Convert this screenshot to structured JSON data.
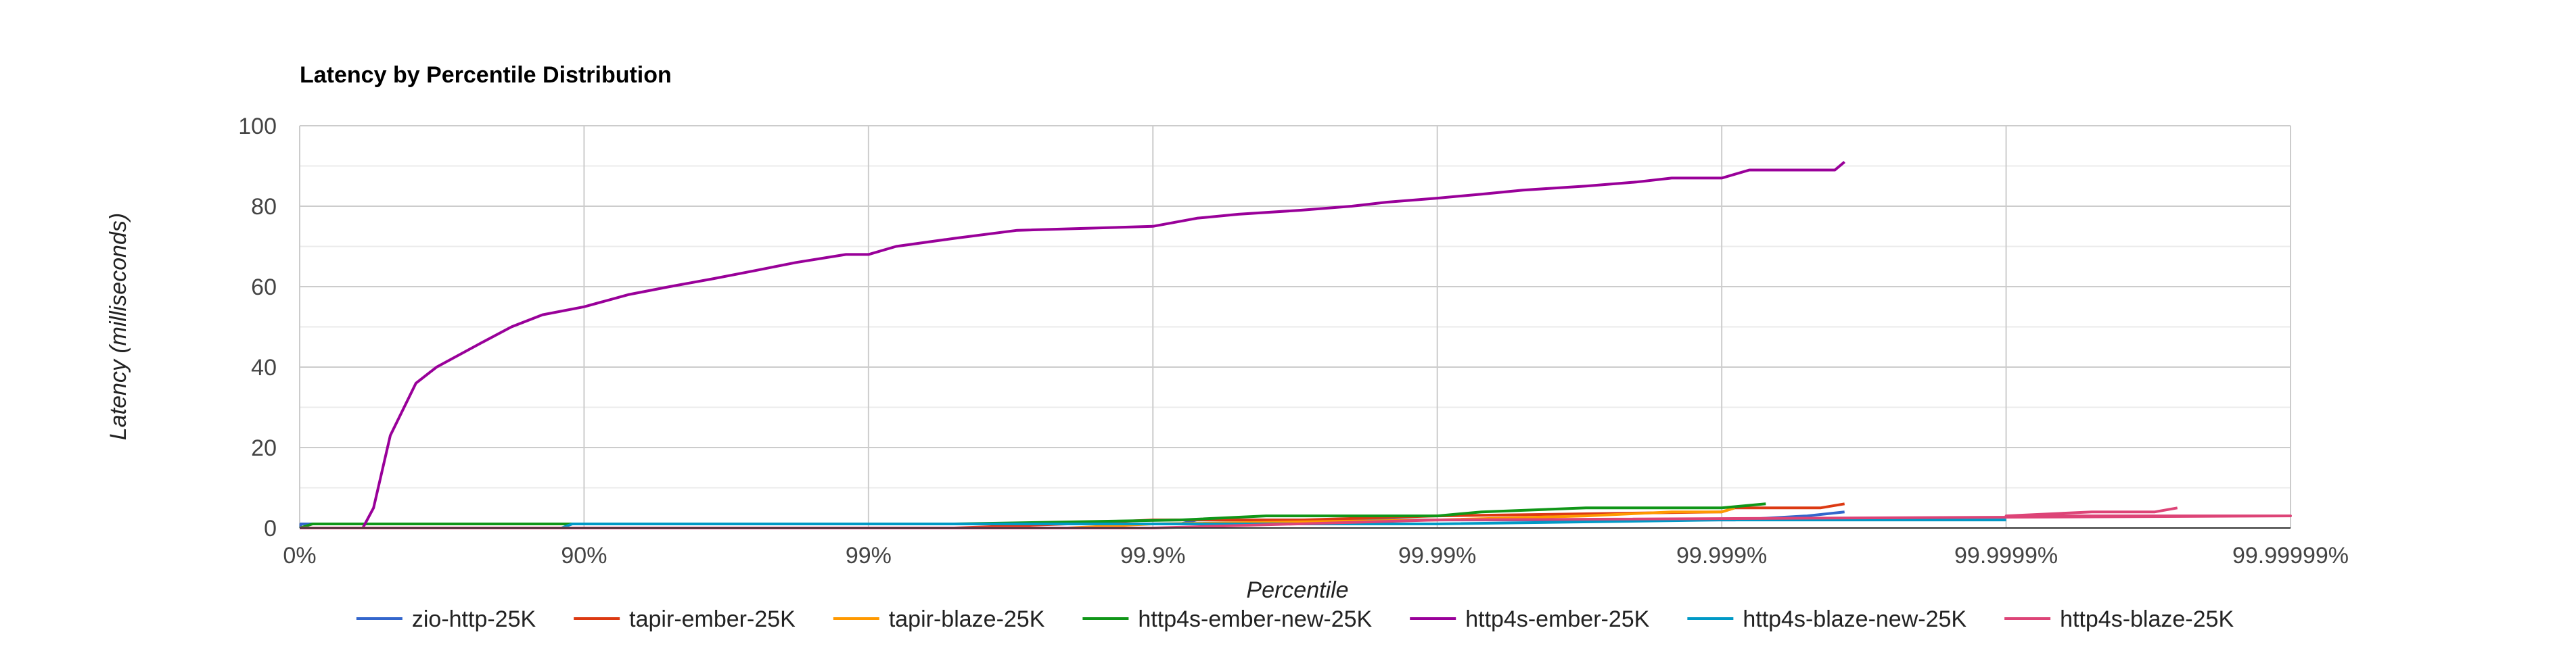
{
  "chart_data": {
    "type": "line",
    "title": "Latency by Percentile Distribution",
    "xlabel": "Percentile",
    "ylabel": "Latency (milliseconds)",
    "x_scale": "log-percentile",
    "x_ticks": [
      "0%",
      "90%",
      "99%",
      "99.9%",
      "99.99%",
      "99.999%",
      "99.9999%",
      "99.99999%"
    ],
    "y_ticks": [
      "0",
      "20",
      "40",
      "60",
      "80",
      "100"
    ],
    "ylim": [
      0,
      100
    ],
    "grid": true,
    "legend_position": "bottom",
    "series": [
      {
        "name": "zio-http-25K",
        "color": "#3366cc",
        "points": [
          [
            0,
            0
          ],
          [
            0.88,
            0
          ],
          [
            0.9,
            1
          ],
          [
            99.5,
            1
          ],
          [
            99.92,
            1
          ],
          [
            99.93,
            2
          ],
          [
            99.999,
            2
          ],
          [
            99.9991,
            2
          ],
          [
            99.9995,
            3
          ],
          [
            99.99963,
            4
          ]
        ]
      },
      {
        "name": "tapir-ember-25K",
        "color": "#dc3912",
        "points": [
          [
            0,
            0
          ],
          [
            99.5,
            0
          ],
          [
            99.8,
            1
          ],
          [
            99.9,
            2
          ],
          [
            99.97,
            2
          ],
          [
            99.99,
            3
          ],
          [
            99.999,
            4
          ],
          [
            99.9991,
            5
          ],
          [
            99.99955,
            5
          ],
          [
            99.99963,
            6
          ]
        ]
      },
      {
        "name": "tapir-blaze-25K",
        "color": "#ff9900",
        "points": [
          [
            0,
            0
          ],
          [
            99.8,
            0
          ],
          [
            99.9,
            1
          ],
          [
            99.99,
            2
          ],
          [
            99.997,
            3
          ],
          [
            99.9985,
            4
          ],
          [
            99.999,
            4
          ],
          [
            99.9991,
            5
          ]
        ]
      },
      {
        "name": "http4s-ember-new-25K",
        "color": "#109618",
        "points": [
          [
            0,
            0
          ],
          [
            10,
            1
          ],
          [
            99.5,
            1
          ],
          [
            99.92,
            2
          ],
          [
            99.96,
            3
          ],
          [
            99.99,
            3
          ],
          [
            99.993,
            4
          ],
          [
            99.997,
            5
          ],
          [
            99.999,
            5
          ],
          [
            99.9993,
            6
          ]
        ]
      },
      {
        "name": "http4s-ember-25K",
        "color": "#990099",
        "points": [
          [
            0,
            0
          ],
          [
            40,
            0
          ],
          [
            45,
            5
          ],
          [
            52,
            23
          ],
          [
            61,
            36
          ],
          [
            67,
            40
          ],
          [
            77,
            46
          ],
          [
            82,
            50
          ],
          [
            86,
            53
          ],
          [
            90,
            55
          ],
          [
            93,
            58
          ],
          [
            95,
            60
          ],
          [
            96.5,
            62
          ],
          [
            97.5,
            64
          ],
          [
            98.2,
            66
          ],
          [
            98.8,
            68
          ],
          [
            99,
            68
          ],
          [
            99.2,
            70
          ],
          [
            99.5,
            72
          ],
          [
            99.7,
            74
          ],
          [
            99.9,
            75
          ],
          [
            99.93,
            77
          ],
          [
            99.95,
            78
          ],
          [
            99.97,
            79
          ],
          [
            99.98,
            80
          ],
          [
            99.985,
            81
          ],
          [
            99.99,
            82
          ],
          [
            99.993,
            83
          ],
          [
            99.995,
            84
          ],
          [
            99.997,
            85
          ],
          [
            99.998,
            86
          ],
          [
            99.9985,
            87
          ],
          [
            99.999,
            87
          ],
          [
            99.9992,
            89
          ],
          [
            99.9996,
            89
          ],
          [
            99.99963,
            91
          ]
        ]
      },
      {
        "name": "http4s-blaze-new-25K",
        "color": "#0099c6",
        "points": [
          [
            0,
            0
          ],
          [
            88,
            0
          ],
          [
            89,
            1
          ],
          [
            99.8,
            1
          ],
          [
            99.99,
            1
          ],
          [
            99.999,
            2
          ],
          [
            99.9999,
            2
          ]
        ]
      },
      {
        "name": "http4s-blaze-25K",
        "color": "#dd4477",
        "points": [
          [
            0,
            0
          ],
          [
            99.9,
            0
          ],
          [
            99.99,
            2
          ],
          [
            99.99999,
            3
          ],
          [
            99.9999,
            3
          ],
          [
            99.99995,
            4
          ],
          [
            99.99997,
            4
          ],
          [
            99.999975,
            5
          ]
        ]
      }
    ]
  }
}
